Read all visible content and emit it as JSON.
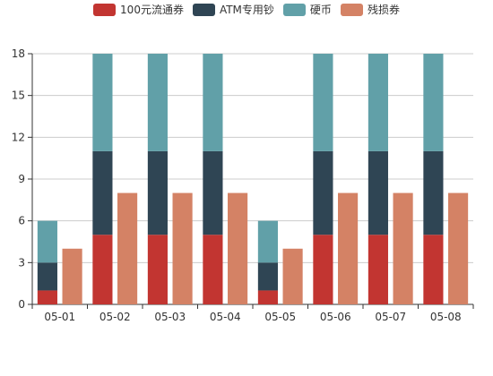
{
  "chart_data": {
    "type": "bar",
    "categories": [
      "05-01",
      "05-02",
      "05-03",
      "05-04",
      "05-05",
      "05-06",
      "05-07",
      "05-08"
    ],
    "series": [
      {
        "name": "100元流通券",
        "stack": "A",
        "values": [
          1,
          5,
          5,
          5,
          1,
          5,
          5,
          5
        ]
      },
      {
        "name": "ATM专用钞",
        "stack": "A",
        "values": [
          2,
          6,
          6,
          6,
          2,
          6,
          6,
          6
        ]
      },
      {
        "name": "硬币",
        "stack": "A",
        "values": [
          3,
          7,
          7,
          7,
          3,
          7,
          7,
          7
        ]
      },
      {
        "name": "残损券",
        "stack": "B",
        "values": [
          4,
          8,
          8,
          8,
          4,
          8,
          8,
          8
        ]
      }
    ],
    "ylim": [
      0,
      18
    ],
    "yticks": [
      0,
      3,
      6,
      9,
      12,
      15,
      18
    ],
    "grid": true,
    "legend": "top-center",
    "colors": [
      "#c23531",
      "#2f4554",
      "#61a0a8",
      "#d48265"
    ]
  }
}
